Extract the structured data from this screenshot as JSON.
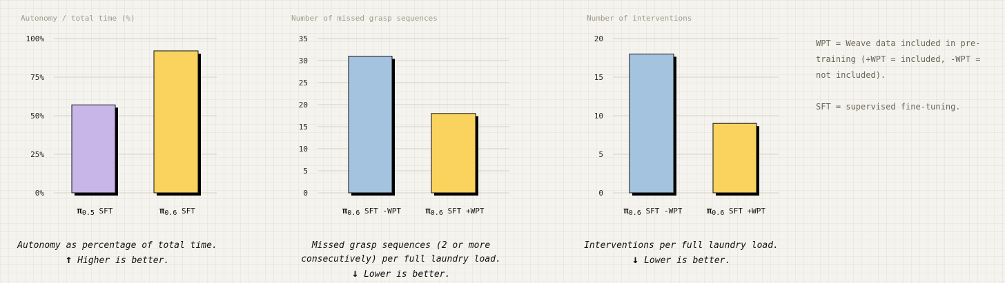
{
  "chart_data": [
    {
      "type": "bar",
      "title": "Autonomy / total time (%)",
      "categories": [
        {
          "pi": "π",
          "sub": "0.5",
          "rest": " SFT"
        },
        {
          "pi": "π",
          "sub": "0.6",
          "rest": " SFT"
        }
      ],
      "values": [
        57,
        92
      ],
      "colors": [
        "#c9b6e8",
        "#fad35e"
      ],
      "ylim": [
        0,
        100
      ],
      "yticks": [
        0,
        25,
        50,
        75,
        100
      ],
      "yticklabels": [
        "0%",
        "25%",
        "50%",
        "75%",
        "100%"
      ],
      "grid": true,
      "caption": {
        "lines": [
          "Autonomy as percentage of total time."
        ],
        "arrow": "↑",
        "note": "Higher is better."
      }
    },
    {
      "type": "bar",
      "title": "Number of missed grasp sequences",
      "categories": [
        {
          "pi": "π",
          "sub": "0.6",
          "rest": " SFT -WPT"
        },
        {
          "pi": "π",
          "sub": "0.6",
          "rest": " SFT +WPT"
        }
      ],
      "values": [
        31,
        18
      ],
      "colors": [
        "#a3c3df",
        "#fad35e"
      ],
      "ylim": [
        0,
        35
      ],
      "yticks": [
        0,
        5,
        10,
        15,
        20,
        25,
        30,
        35
      ],
      "yticklabels": [
        "0",
        "5",
        "10",
        "15",
        "20",
        "25",
        "30",
        "35"
      ],
      "grid": true,
      "caption": {
        "lines": [
          "Missed grasp sequences (2 or more",
          "consecutively) per full laundry load."
        ],
        "arrow": "↓",
        "note": "Lower is better."
      }
    },
    {
      "type": "bar",
      "title": "Number of interventions",
      "categories": [
        {
          "pi": "π",
          "sub": "0.6",
          "rest": " SFT -WPT"
        },
        {
          "pi": "π",
          "sub": "0.6",
          "rest": " SFT +WPT"
        }
      ],
      "values": [
        18,
        9
      ],
      "colors": [
        "#a3c3df",
        "#fad35e"
      ],
      "ylim": [
        0,
        20
      ],
      "yticks": [
        0,
        5,
        10,
        15,
        20
      ],
      "yticklabels": [
        "0",
        "5",
        "10",
        "15",
        "20"
      ],
      "grid": true,
      "caption": {
        "lines": [
          "Interventions per full laundry load."
        ],
        "arrow": "↓",
        "note": "Lower is better."
      }
    }
  ],
  "notes": [
    "WPT = Weave data included in pre-training (+WPT = included, -WPT = not included).",
    "SFT = supervised fine-tuning."
  ]
}
